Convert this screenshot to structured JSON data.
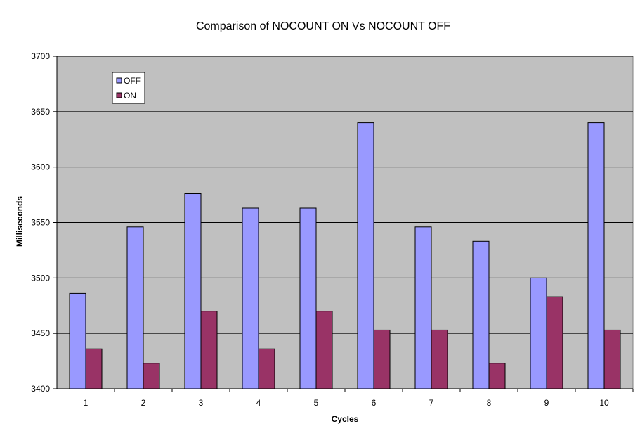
{
  "chart_data": {
    "type": "bar",
    "title": "Comparison of NOCOUNT ON Vs NOCOUNT OFF",
    "xlabel": "Cycles",
    "ylabel": "Milliseconds",
    "categories": [
      "1",
      "2",
      "3",
      "4",
      "5",
      "6",
      "7",
      "8",
      "9",
      "10"
    ],
    "series": [
      {
        "name": "OFF",
        "color": "#9999ff",
        "values": [
          3486,
          3546,
          3576,
          3563,
          3563,
          3640,
          3546,
          3533,
          3500,
          3640
        ]
      },
      {
        "name": "ON",
        "color": "#993366",
        "values": [
          3436,
          3423,
          3470,
          3436,
          3470,
          3453,
          3453,
          3423,
          3483,
          3453
        ]
      }
    ],
    "ylim": [
      3400,
      3700
    ],
    "yticks": [
      3400,
      3450,
      3500,
      3550,
      3600,
      3650,
      3700
    ],
    "grid": true,
    "plot_background": "#c0c0c0",
    "legend_position": "top-left"
  }
}
